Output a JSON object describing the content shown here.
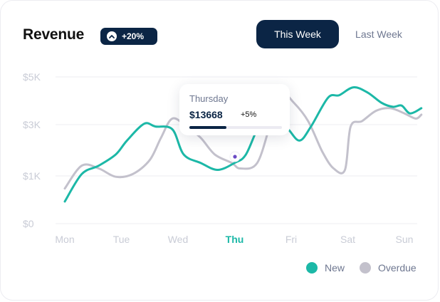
{
  "header": {
    "title": "Revenue",
    "badge_text": "+20%",
    "badge_icon": "chevron-up-icon"
  },
  "toggle": {
    "active_label": "This Week",
    "inactive_label": "Last Week"
  },
  "tooltip": {
    "day": "Thursday",
    "value": "$13668",
    "change": "+5%",
    "progress": 0.4
  },
  "legend": {
    "new_label": "New",
    "overdue_label": "Overdue"
  },
  "colors": {
    "new": "#1cb8a7",
    "overdue": "#c3c1cc",
    "accent": "#0b2545",
    "highlight": "#1cb8a7",
    "marker": "#6a4bc4"
  },
  "chart_data": {
    "type": "line",
    "categories": [
      "Mon",
      "Tue",
      "Wed",
      "Thu",
      "Fri",
      "Sat",
      "Sun"
    ],
    "y_ticks": [
      "$0",
      "$1K",
      "$3K",
      "$5K"
    ],
    "highlighted_category": "Thu",
    "grid": true,
    "legend_position": "bottom-right",
    "series": [
      {
        "name": "New",
        "x": [
          0,
          0.3,
          0.6,
          0.9,
          1.1,
          1.4,
          1.6,
          1.9,
          2.1,
          2.4,
          2.7,
          3.0,
          3.2,
          3.45,
          3.7,
          3.95,
          4.15,
          4.35,
          4.65,
          4.85,
          5.1,
          5.35,
          5.6,
          5.8,
          5.95,
          6.1,
          6.3
        ],
        "values": [
          0.85,
          1.9,
          2.2,
          2.6,
          3.1,
          3.7,
          3.6,
          3.5,
          2.6,
          2.3,
          2.05,
          2.3,
          2.6,
          3.7,
          4.1,
          3.5,
          3.1,
          3.6,
          4.7,
          4.8,
          5.1,
          4.9,
          4.5,
          4.35,
          4.4,
          4.1,
          4.3
        ]
      },
      {
        "name": "Overdue",
        "x": [
          0,
          0.3,
          0.6,
          0.9,
          1.2,
          1.5,
          1.7,
          1.9,
          2.15,
          2.4,
          2.65,
          2.95,
          3.1,
          3.4,
          3.65,
          3.85,
          4.05,
          4.3,
          4.55,
          4.75,
          4.95,
          5.05,
          5.25,
          5.5,
          5.75,
          6.0,
          6.2,
          6.3
        ],
        "values": [
          1.35,
          2.2,
          2.1,
          1.8,
          1.9,
          2.4,
          3.2,
          3.9,
          3.6,
          3.2,
          2.6,
          2.3,
          2.1,
          2.3,
          3.8,
          4.8,
          4.5,
          3.8,
          2.7,
          2.1,
          2.05,
          3.6,
          3.8,
          4.2,
          4.3,
          4.1,
          3.9,
          4.05
        ]
      }
    ]
  }
}
